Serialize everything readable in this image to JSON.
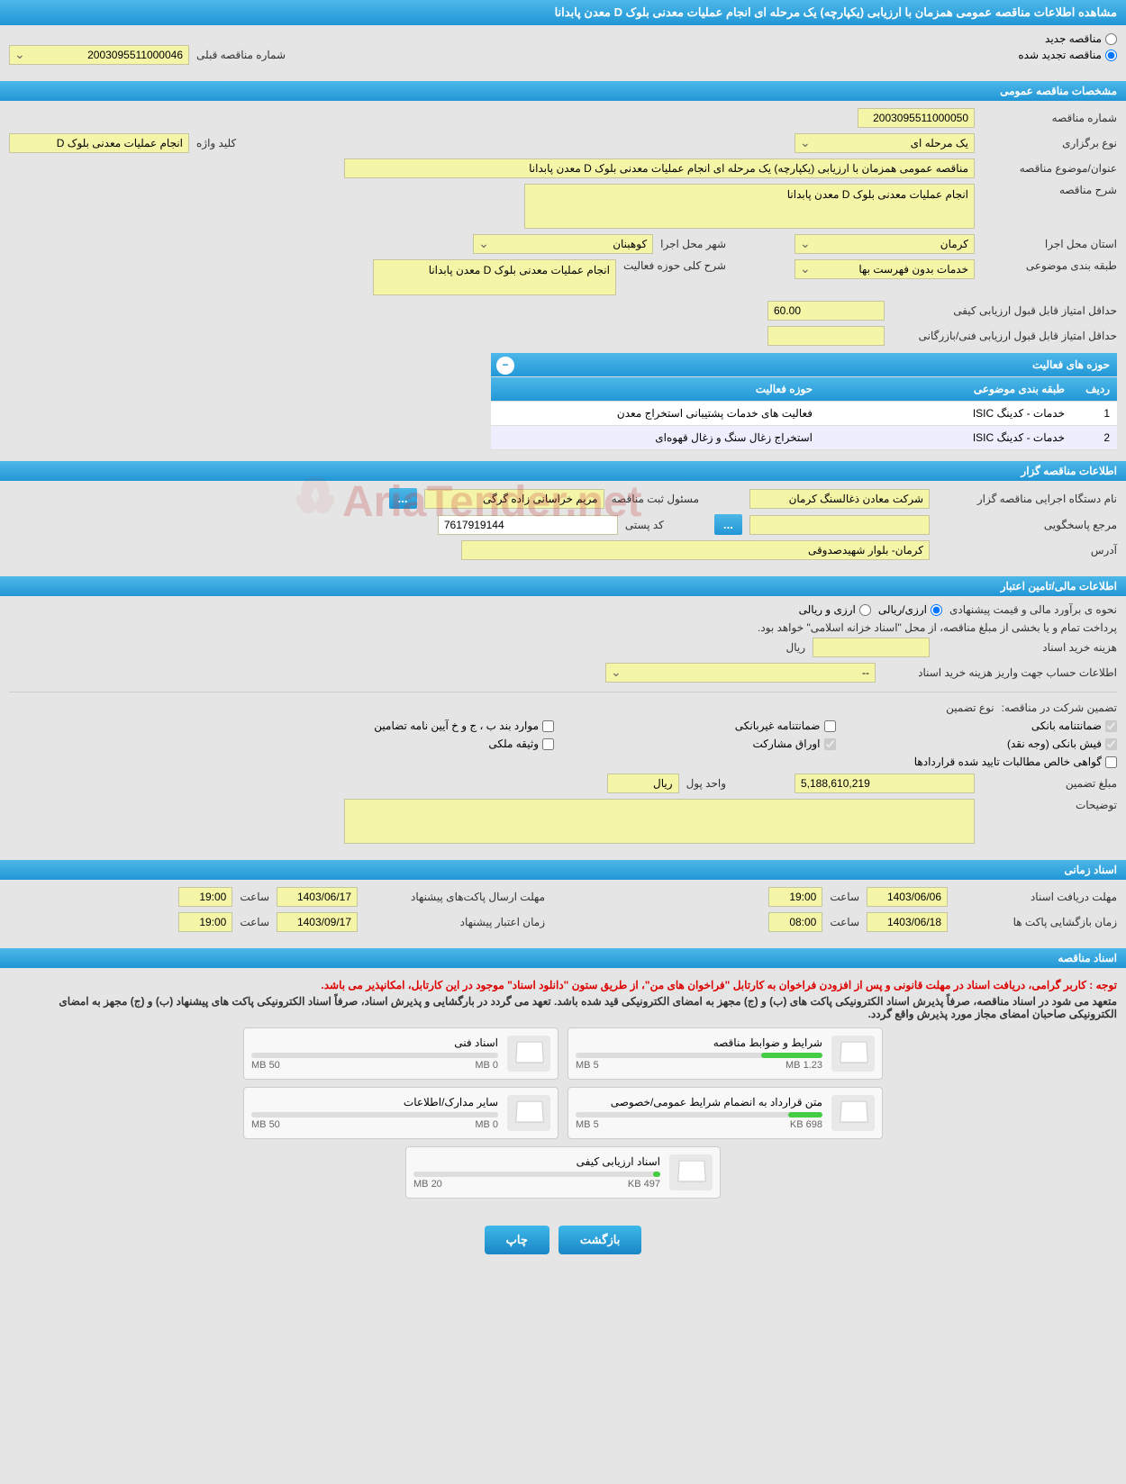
{
  "page_title": "مشاهده اطلاعات مناقصه عمومی همزمان با ارزیابی (یکپارچه) یک مرحله ای انجام عملیات معدنی بلوک D معدن پابدانا",
  "top_radios": {
    "new_tender": "مناقصه جدید",
    "renewed_tender": "مناقصه تجدید شده"
  },
  "prev_tender_label": "شماره مناقصه قبلی",
  "prev_tender_value": "2003095511000046",
  "sections": {
    "general": "مشخصات مناقصه عمومی",
    "holder": "اطلاعات مناقصه گزار",
    "financial": "اطلاعات مالی/تامین اعتبار",
    "timing": "اسناد زمانی",
    "documents": "اسناد مناقصه"
  },
  "general": {
    "tender_number_label": "شماره مناقصه",
    "tender_number": "2003095511000050",
    "keyword_label": "کلید واژه",
    "keyword": "انجام عملیات معدنی بلوک D",
    "holding_type_label": "نوع برگزاری",
    "holding_type": "یک مرحله ای",
    "subject_label": "عنوان/موضوع مناقصه",
    "subject": "مناقصه عمومی همزمان با ارزیابی (یکپارچه) یک مرحله ای انجام عملیات معدنی بلوک D معدن پابدانا",
    "desc_label": "شرح مناقصه",
    "desc": "انجام عملیات معدنی بلوک D معدن پابدانا",
    "exec_province_label": "استان محل اجرا",
    "exec_province": "کرمان",
    "exec_city_label": "شهر محل اجرا",
    "exec_city": "کوهبنان",
    "subject_class_label": "طبقه بندی موضوعی",
    "subject_class": "خدمات بدون فهرست بها",
    "activity_desc_label": "شرح کلی حوزه فعالیت",
    "activity_desc": "انجام عملیات معدنی بلوک D معدن پابدانا",
    "min_quality_label": "حداقل امتیاز قابل قبول ارزیابی کیفی",
    "min_quality": "60.00",
    "min_tech_label": "حداقل امتیاز قابل قبول ارزیابی فنی/بازرگانی",
    "min_tech": ""
  },
  "activities": {
    "title": "حوزه های فعالیت",
    "col_row": "ردیف",
    "col_class": "طبقه بندی موضوعی",
    "col_area": "حوزه فعالیت",
    "rows": [
      {
        "n": "1",
        "cls": "خدمات - کدینگ ISIC",
        "area": "فعالیت های خدمات پشتیبانی استخراج معدن"
      },
      {
        "n": "2",
        "cls": "خدمات - کدینگ ISIC",
        "area": "استخراج زغال سنگ و زغال قهوه‌ای"
      }
    ]
  },
  "holder": {
    "org_label": "نام دستگاه اجرایی مناقصه گزار",
    "org": "شرکت معادن ذغالسنگ کرمان",
    "reg_officer_label": "مسئول ثبت مناقصه",
    "reg_officer": "مریم خراسانی زاده گرگی",
    "response_ref_label": "مرجع پاسخگویی",
    "response_ref": "",
    "postcode_label": "کد پستی",
    "postcode": "7617919144",
    "address_label": "آدرس",
    "address": "کرمان- بلوار شهیدصدوقی"
  },
  "financial": {
    "est_label": "نحوه ی برآورد مالی و قیمت پیشنهادی",
    "opt_fx": "ارزی/ریالی",
    "opt_rial": "ارزی و ریالی",
    "note": "پرداخت تمام و یا بخشی از مبلغ مناقصه، از محل \"اسناد خزانه اسلامی\" خواهد بود.",
    "purchase_cost_label": "هزینه خرید اسناد",
    "currency": "ریال",
    "account_label": "اطلاعات حساب جهت واریز هزینه خرید اسناد",
    "account": "--",
    "guarantee_label": "تضمین شرکت در مناقصه:",
    "guarantee_type_label": "نوع تضمین",
    "checks": {
      "bank_guarantee": "ضمانتنامه بانکی",
      "nonbank_guarantee": "ضمانتنامه غیربانکی",
      "items_guarantee": "موارد بند ب ، ج و خ آیین نامه تضامین",
      "bank_slip": "فیش بانکی (وجه نقد)",
      "participation_bonds": "اوراق مشارکت",
      "property_pledge": "وثیقه ملکی",
      "confirmed_claims": "گواهی خالص مطالبات تایید شده قراردادها"
    },
    "guarantee_amount_label": "مبلغ تضمین",
    "guarantee_amount": "5,188,610,219",
    "unit_label": "واحد پول",
    "unit": "ریال",
    "notes_label": "توضیحات"
  },
  "timing": {
    "receive_deadline_label": "مهلت دریافت اسناد",
    "receive_deadline_date": "1403/06/06",
    "receive_deadline_time_label": "ساعت",
    "receive_deadline_time": "19:00",
    "send_deadline_label": "مهلت ارسال پاکت‌های پیشنهاد",
    "send_deadline_date": "1403/06/17",
    "send_deadline_time": "19:00",
    "validity_label": "زمان اعتبار پیشنهاد",
    "validity_date": "1403/09/17",
    "opening_label": "زمان بازگشایی پاکت ها",
    "opening_date": "1403/06/18",
    "opening_time": "08:00",
    "opening_time2": "19:00"
  },
  "docs": {
    "note1": "توجه : کاربر گرامی، دریافت اسناد در مهلت قانونی و پس از افزودن فراخوان به کارتابل \"فراخوان های من\"، از طریق ستون \"دانلود اسناد\" موجود در این کارتابل، امکانپذیر می باشد.",
    "note2": "متعهد می شود در اسناد مناقصه، صرفاً پذیرش اسناد الکترونیکی پاکت های (ب) و (ج) مجهز به امضای الکترونیکی قید شده باشد. تعهد می گردد در بارگشایی و پذیرش اسناد، صرفاً اسناد الکترونیکی پاکت های پیشنهاد (ب) و (ج) مجهز به امضای الکترونیکی صاحبان امضای مجاز مورد پذیرش واقع گردد.",
    "cards": [
      {
        "title": "شرایط و ضوابط مناقصه",
        "used": "1.23 MB",
        "total": "5 MB",
        "pct": 25
      },
      {
        "title": "اسناد فنی",
        "used": "0 MB",
        "total": "50 MB",
        "pct": 0
      },
      {
        "title": "متن قرارداد به انضمام شرایط عمومی/خصوصی",
        "used": "698 KB",
        "total": "5 MB",
        "pct": 14
      },
      {
        "title": "سایر مدارک/اطلاعات",
        "used": "0 MB",
        "total": "50 MB",
        "pct": 0
      },
      {
        "title": "اسناد ارزیابی کیفی",
        "used": "497 KB",
        "total": "20 MB",
        "pct": 3
      }
    ]
  },
  "buttons": {
    "back": "بازگشت",
    "print": "چاپ"
  },
  "colors": {
    "header_bg": "#2da7db",
    "field_bg": "#f5f5a8",
    "red": "#d00"
  }
}
